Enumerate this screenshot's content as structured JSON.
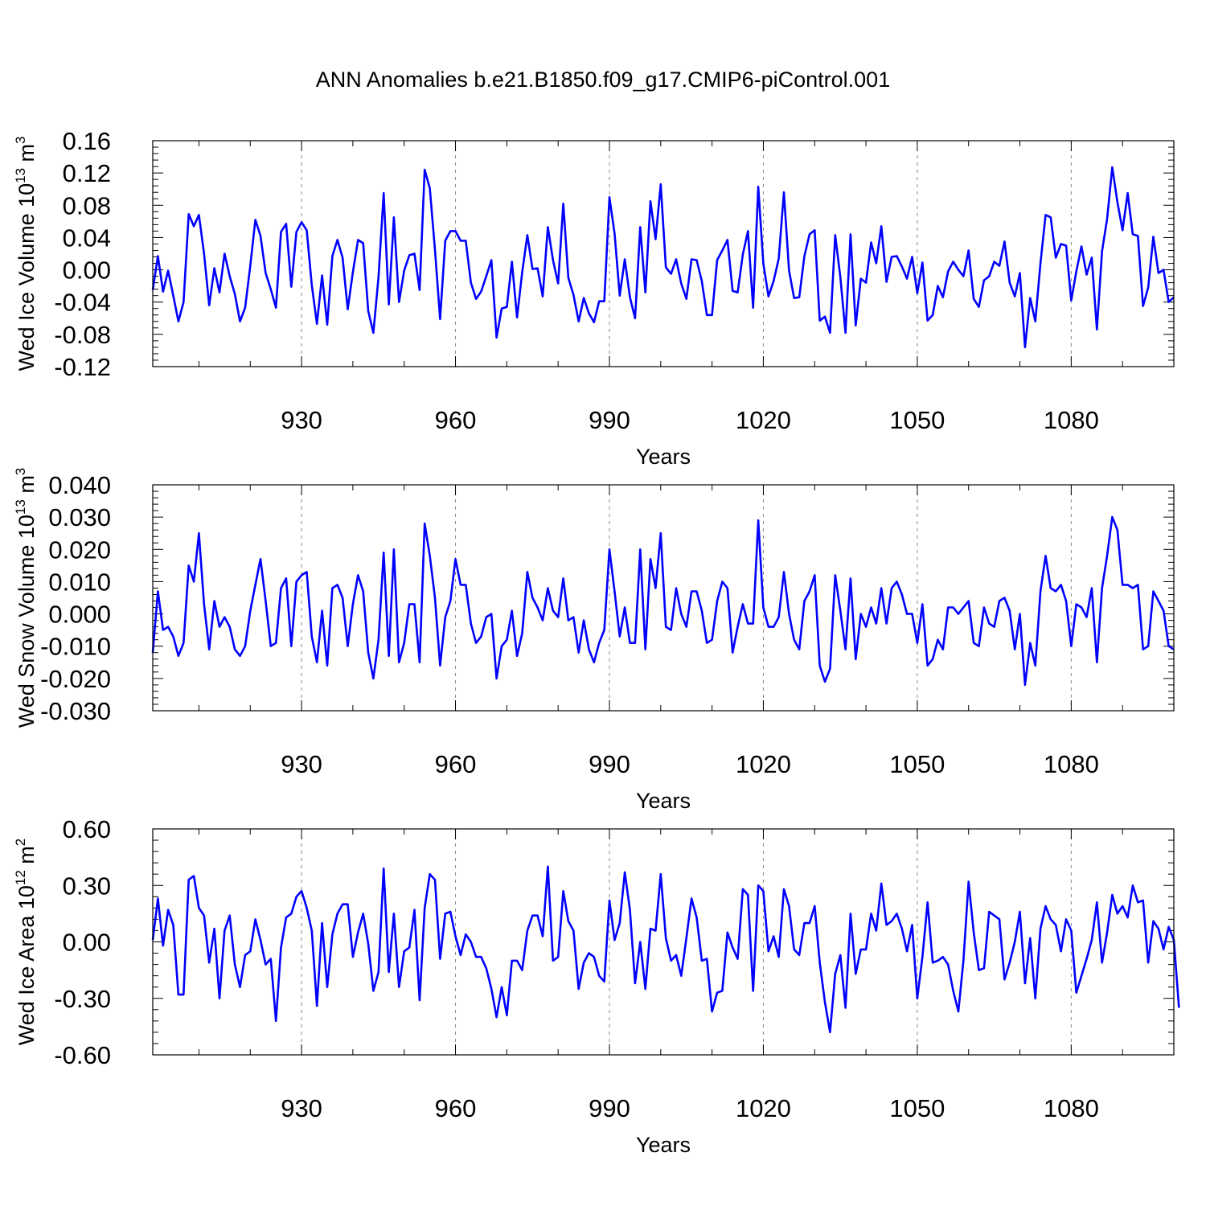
{
  "title": "ANN Anomalies b.e21.B1850.f09_g17.CMIP6-piControl.001",
  "line_color": "#0000ff",
  "chart_data": [
    {
      "type": "line",
      "title": "ANN Anomalies b.e21.B1850.f09_g17.CMIP6-piControl.001",
      "xlabel": "Years",
      "ylabel_main": "Wed Ice Volume 10",
      "ylabel_sup": "13",
      "ylabel_unit": " m",
      "ylabel_unit_sup": "3",
      "xlim": [
        901,
        1100
      ],
      "ylim": [
        -0.12,
        0.16
      ],
      "xticks": [
        930,
        960,
        990,
        1020,
        1050,
        1080
      ],
      "xtick_labels": [
        "930",
        "960",
        "990",
        "1020",
        "1050",
        "1080"
      ],
      "yticks": [
        -0.12,
        -0.08,
        -0.04,
        0.0,
        0.04,
        0.08,
        0.12,
        0.16
      ],
      "ytick_labels": [
        "-0.12",
        "-0.08",
        "-0.04",
        "0.00",
        "0.04",
        "0.08",
        "0.12",
        "0.16"
      ],
      "x_start": 901,
      "values": [
        -0.025,
        0.017,
        -0.027,
        -0.001,
        -0.032,
        -0.064,
        -0.04,
        0.069,
        0.054,
        0.068,
        0.02,
        -0.044,
        0.002,
        -0.028,
        0.02,
        -0.008,
        -0.03,
        -0.064,
        -0.047,
        0.005,
        0.062,
        0.042,
        -0.004,
        -0.024,
        -0.047,
        0.047,
        0.057,
        -0.021,
        0.047,
        0.059,
        0.049,
        -0.019,
        -0.067,
        -0.007,
        -0.068,
        0.017,
        0.037,
        0.015,
        -0.049,
        -0.003,
        0.037,
        0.033,
        -0.051,
        -0.078,
        -0.009,
        0.095,
        -0.043,
        0.065,
        -0.04,
        -0.001,
        0.018,
        0.02,
        -0.025,
        0.124,
        0.101,
        0.025,
        -0.061,
        0.036,
        0.048,
        0.048,
        0.036,
        0.036,
        -0.016,
        -0.036,
        -0.027,
        -0.008,
        0.012,
        -0.084,
        -0.048,
        -0.046,
        0.01,
        -0.059,
        -0.003,
        0.043,
        0.001,
        0.002,
        -0.033,
        0.053,
        0.012,
        -0.017,
        0.082,
        -0.01,
        -0.031,
        -0.064,
        -0.035,
        -0.054,
        -0.065,
        -0.039,
        -0.039,
        0.09,
        0.045,
        -0.032,
        0.013,
        -0.034,
        -0.06,
        0.053,
        -0.028,
        0.085,
        0.038,
        0.106,
        0.003,
        -0.005,
        0.013,
        -0.017,
        -0.036,
        0.013,
        0.012,
        -0.014,
        -0.056,
        -0.056,
        0.012,
        0.024,
        0.037,
        -0.026,
        -0.028,
        0.019,
        0.048,
        -0.047,
        0.103,
        0.008,
        -0.033,
        -0.014,
        0.014,
        0.096,
        -0.001,
        -0.035,
        -0.034,
        0.017,
        0.044,
        0.049,
        -0.063,
        -0.058,
        -0.078,
        0.043,
        -0.009,
        -0.078,
        0.044,
        -0.069,
        -0.011,
        -0.016,
        0.034,
        0.008,
        0.054,
        -0.015,
        0.016,
        0.017,
        0.004,
        -0.011,
        0.016,
        -0.029,
        0.009,
        -0.063,
        -0.056,
        -0.02,
        -0.034,
        -0.002,
        0.01,
        0.0,
        -0.008,
        0.024,
        -0.036,
        -0.046,
        -0.013,
        -0.008,
        0.01,
        0.005,
        0.035,
        -0.016,
        -0.033,
        -0.004,
        -0.096,
        -0.035,
        -0.064,
        0.008,
        0.068,
        0.065,
        0.015,
        0.032,
        0.03,
        -0.038,
        -0.002,
        0.029,
        -0.006,
        0.015,
        -0.074,
        0.023,
        0.063,
        0.127,
        0.084,
        0.049,
        0.095,
        0.044,
        0.042,
        -0.045,
        -0.022,
        0.041,
        -0.004,
        0.0,
        -0.04,
        -0.034
      ]
    },
    {
      "type": "line",
      "xlabel": "Years",
      "ylabel_main": "Wed Snow Volume 10",
      "ylabel_sup": "13",
      "ylabel_unit": " m",
      "ylabel_unit_sup": "3",
      "xlim": [
        901,
        1100
      ],
      "ylim": [
        -0.03,
        0.04
      ],
      "xticks": [
        930,
        960,
        990,
        1020,
        1050,
        1080
      ],
      "xtick_labels": [
        "930",
        "960",
        "990",
        "1020",
        "1050",
        "1080"
      ],
      "yticks": [
        -0.03,
        -0.02,
        -0.01,
        0.0,
        0.01,
        0.02,
        0.03,
        0.04
      ],
      "ytick_labels": [
        "-0.030",
        "-0.020",
        "-0.010",
        "0.000",
        "0.010",
        "0.020",
        "0.030",
        "0.040"
      ],
      "x_start": 901,
      "values": [
        -0.012,
        0.007,
        -0.005,
        -0.004,
        -0.007,
        -0.013,
        -0.009,
        0.015,
        0.01,
        0.025,
        0.003,
        -0.011,
        0.004,
        -0.004,
        -0.001,
        -0.004,
        -0.011,
        -0.013,
        -0.01,
        0.001,
        0.009,
        0.017,
        0.004,
        -0.01,
        -0.009,
        0.008,
        0.011,
        -0.01,
        0.01,
        0.012,
        0.013,
        -0.007,
        -0.015,
        0.001,
        -0.016,
        0.008,
        0.009,
        0.005,
        -0.01,
        0.003,
        0.012,
        0.007,
        -0.012,
        -0.02,
        -0.008,
        0.019,
        -0.013,
        0.02,
        -0.015,
        -0.009,
        0.003,
        0.003,
        -0.015,
        0.028,
        0.018,
        0.005,
        -0.016,
        -0.001,
        0.004,
        0.017,
        0.009,
        0.009,
        -0.003,
        -0.009,
        -0.007,
        -0.001,
        0.0,
        -0.02,
        -0.01,
        -0.008,
        0.001,
        -0.013,
        -0.006,
        0.013,
        0.005,
        0.002,
        -0.002,
        0.008,
        0.001,
        -0.001,
        0.011,
        -0.002,
        -0.001,
        -0.012,
        -0.002,
        -0.011,
        -0.015,
        -0.009,
        -0.005,
        0.02,
        0.007,
        -0.007,
        0.002,
        -0.009,
        -0.009,
        0.02,
        -0.011,
        0.017,
        0.008,
        0.025,
        -0.004,
        -0.005,
        0.008,
        0.0,
        -0.004,
        0.007,
        0.007,
        0.001,
        -0.009,
        -0.008,
        0.004,
        0.01,
        0.008,
        -0.012,
        -0.004,
        0.003,
        -0.003,
        -0.003,
        0.029,
        0.002,
        -0.004,
        -0.004,
        -0.001,
        0.013,
        0.0,
        -0.008,
        -0.011,
        0.004,
        0.007,
        0.012,
        -0.016,
        -0.021,
        -0.017,
        0.012,
        0.001,
        -0.011,
        0.011,
        -0.014,
        0.0,
        -0.004,
        0.002,
        -0.003,
        0.008,
        -0.003,
        0.008,
        0.01,
        0.006,
        0.0,
        0.0,
        -0.009,
        0.003,
        -0.016,
        -0.014,
        -0.008,
        -0.011,
        0.002,
        0.002,
        0.0,
        0.002,
        0.004,
        -0.009,
        -0.01,
        0.002,
        -0.003,
        -0.004,
        0.004,
        0.005,
        0.001,
        -0.011,
        0.0,
        -0.022,
        -0.009,
        -0.016,
        0.007,
        0.018,
        0.008,
        0.007,
        0.009,
        0.004,
        -0.01,
        0.003,
        0.002,
        -0.001,
        0.008,
        -0.015,
        0.008,
        0.018,
        0.03,
        0.026,
        0.009,
        0.009,
        0.008,
        0.009,
        -0.011,
        -0.01,
        0.007,
        0.004,
        0.001,
        -0.01,
        -0.011
      ]
    },
    {
      "type": "line",
      "xlabel": "Years",
      "ylabel_main": "Wed Ice Area 10",
      "ylabel_sup": "12",
      "ylabel_unit": " m",
      "ylabel_unit_sup": "2",
      "xlim": [
        901,
        1100
      ],
      "ylim": [
        -0.6,
        0.6
      ],
      "xticks": [
        930,
        960,
        990,
        1020,
        1050,
        1080
      ],
      "xtick_labels": [
        "930",
        "960",
        "990",
        "1020",
        "1050",
        "1080"
      ],
      "yticks": [
        -0.6,
        -0.3,
        0.0,
        0.3,
        0.6
      ],
      "ytick_labels": [
        "-0.60",
        "-0.30",
        "0.00",
        "0.30",
        "0.60"
      ],
      "x_start": 901,
      "values": [
        0.01,
        0.23,
        -0.02,
        0.17,
        0.09,
        -0.28,
        -0.28,
        0.33,
        0.35,
        0.18,
        0.14,
        -0.11,
        0.07,
        -0.3,
        0.06,
        0.14,
        -0.12,
        -0.24,
        -0.07,
        -0.05,
        0.12,
        0.01,
        -0.12,
        -0.09,
        -0.42,
        -0.03,
        0.13,
        0.15,
        0.24,
        0.27,
        0.18,
        0.06,
        -0.34,
        0.1,
        -0.24,
        0.04,
        0.15,
        0.2,
        0.2,
        -0.08,
        0.05,
        0.15,
        -0.01,
        -0.26,
        -0.16,
        0.39,
        -0.16,
        0.15,
        -0.24,
        -0.05,
        -0.03,
        0.17,
        -0.31,
        0.18,
        0.36,
        0.33,
        -0.09,
        0.15,
        0.16,
        0.03,
        -0.07,
        0.04,
        0.0,
        -0.08,
        -0.08,
        -0.14,
        -0.25,
        -0.4,
        -0.24,
        -0.39,
        -0.1,
        -0.1,
        -0.15,
        0.06,
        0.14,
        0.14,
        0.03,
        0.4,
        -0.1,
        -0.08,
        0.27,
        0.11,
        0.06,
        -0.25,
        -0.11,
        -0.06,
        -0.08,
        -0.18,
        -0.21,
        0.22,
        0.01,
        0.1,
        0.37,
        0.17,
        -0.22,
        0.0,
        -0.25,
        0.07,
        0.06,
        0.36,
        0.02,
        -0.1,
        -0.07,
        -0.18,
        0.02,
        0.23,
        0.13,
        -0.1,
        -0.09,
        -0.37,
        -0.27,
        -0.26,
        0.05,
        -0.03,
        -0.09,
        0.28,
        0.25,
        -0.26,
        0.3,
        0.27,
        -0.05,
        0.03,
        -0.08,
        0.28,
        0.19,
        -0.04,
        -0.07,
        0.1,
        0.1,
        0.19,
        -0.11,
        -0.32,
        -0.48,
        -0.17,
        -0.07,
        -0.35,
        0.15,
        -0.17,
        -0.04,
        -0.04,
        0.15,
        0.06,
        0.31,
        0.09,
        0.11,
        0.15,
        0.07,
        -0.05,
        0.09,
        -0.3,
        -0.08,
        0.21,
        -0.11,
        -0.1,
        -0.08,
        -0.12,
        -0.26,
        -0.37,
        -0.1,
        0.32,
        0.05,
        -0.15,
        -0.14,
        0.16,
        0.14,
        0.12,
        -0.2,
        -0.11,
        0.0,
        0.16,
        -0.22,
        0.02,
        -0.3,
        0.07,
        0.19,
        0.12,
        0.09,
        -0.05,
        0.12,
        0.06,
        -0.27,
        -0.18,
        -0.09,
        0.01,
        0.21,
        -0.11,
        0.05,
        0.25,
        0.15,
        0.19,
        0.13,
        0.3,
        0.21,
        0.22,
        -0.11,
        0.11,
        0.07,
        -0.04,
        0.08,
        0.01,
        -0.35
      ]
    }
  ]
}
